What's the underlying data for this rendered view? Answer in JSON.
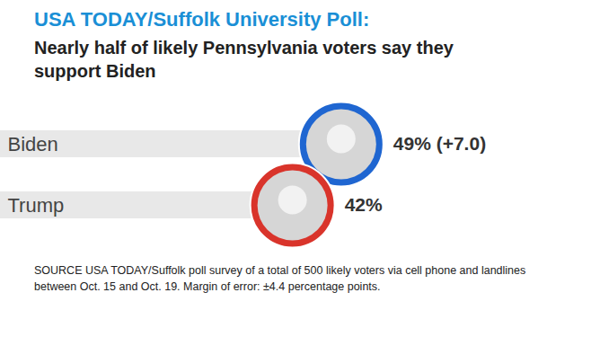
{
  "chart_data": {
    "type": "bar",
    "orientation": "horizontal",
    "title": "USA TODAY/Suffolk University Poll:",
    "subtitle": "Nearly half of likely Pennsylvania voters say they support Biden",
    "categories": [
      "Biden",
      "Trump"
    ],
    "values": [
      49,
      42
    ],
    "value_labels": [
      "49% (+7.0)",
      "42%"
    ],
    "data_labels": true,
    "color": "#e8e8e8",
    "xlim": [
      0,
      85
    ],
    "tick_labels": false,
    "grid": false,
    "caption": "SOURCE USA TODAY/Suffolk poll survey of a total of 500 likely voters via cell phone and landlines between Oct. 15 and Oct. 19. Margin of error: ±4.4 percentage points."
  }
}
